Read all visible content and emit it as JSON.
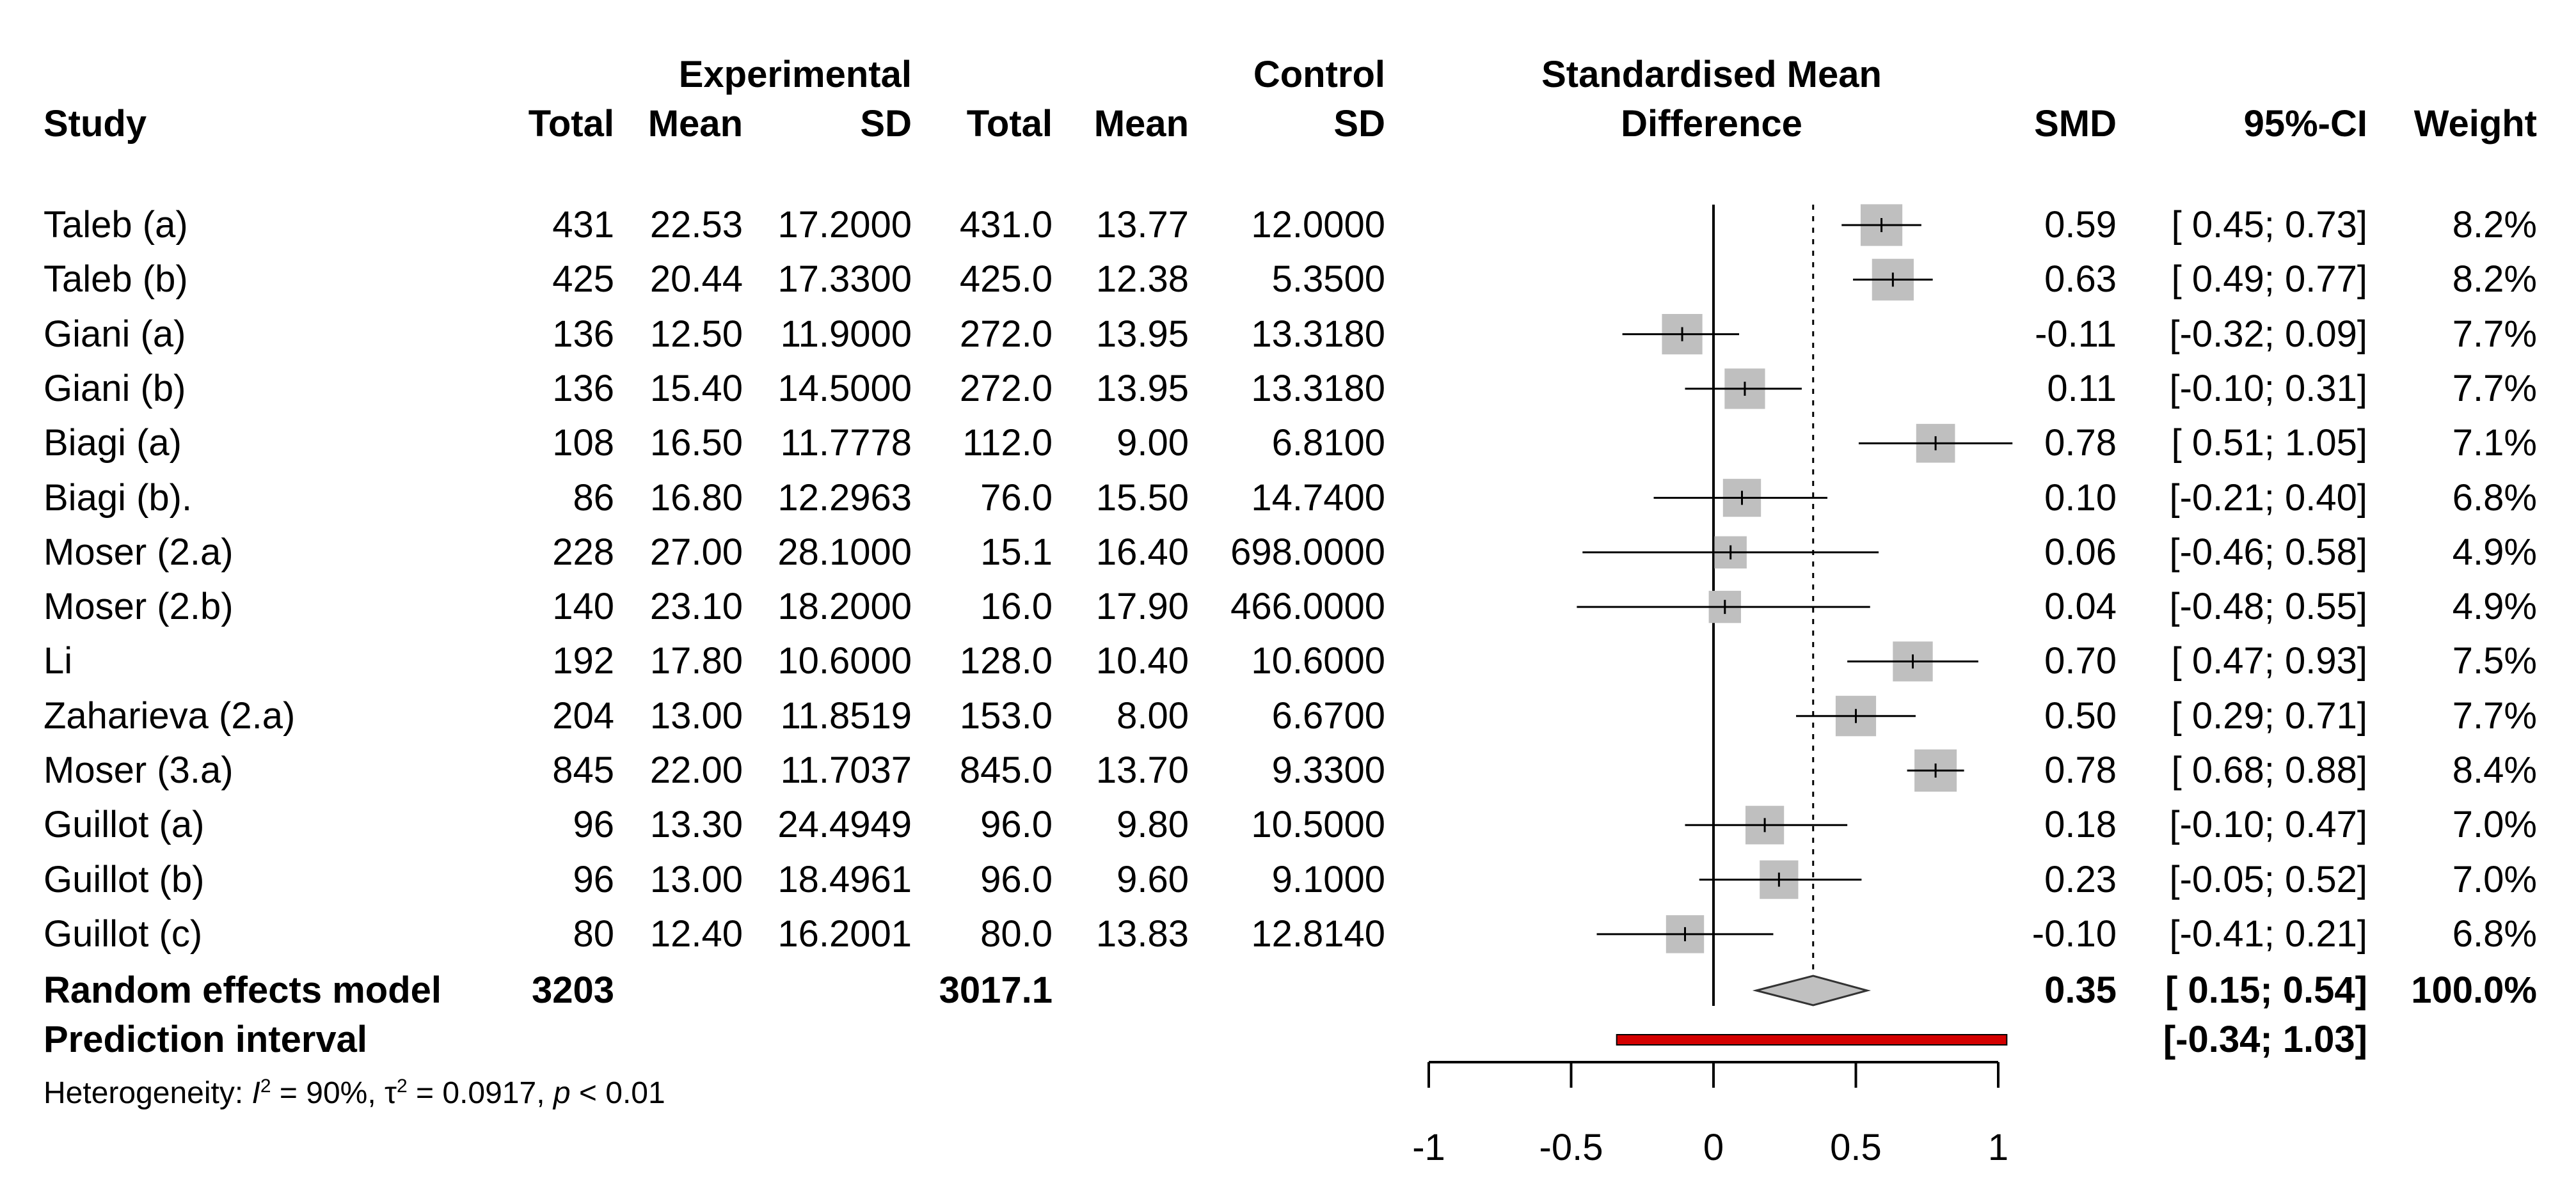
{
  "chart_data": {
    "type": "forest",
    "title": "",
    "xlabel": "Standardised Mean Difference",
    "xlim": [
      -1,
      1
    ],
    "x_ticks": [
      "-1",
      "-0.5",
      "0",
      "0.5",
      "1"
    ],
    "headers": {
      "study": "Study",
      "experimental": "Experimental",
      "control": "Control",
      "total": "Total",
      "mean": "Mean",
      "sd": "SD",
      "smd_title_line1": "Standardised Mean",
      "smd_title_line2": "Difference",
      "smd": "SMD",
      "ci": "95%-CI",
      "weight": "Weight"
    },
    "studies": [
      {
        "study": "Taleb (a)",
        "e_total": "431",
        "e_mean": "22.53",
        "e_sd": "17.2000",
        "c_total": "431.0",
        "c_mean": "13.77",
        "c_sd": "12.0000",
        "smd": 0.59,
        "lower": 0.45,
        "upper": 0.73,
        "weight": 8.2,
        "smd_text": "0.59",
        "ci_text": "[ 0.45; 0.73]",
        "weight_text": "8.2%"
      },
      {
        "study": "Taleb (b)",
        "e_total": "425",
        "e_mean": "20.44",
        "e_sd": "17.3300",
        "c_total": "425.0",
        "c_mean": "12.38",
        "c_sd": "5.3500",
        "smd": 0.63,
        "lower": 0.49,
        "upper": 0.77,
        "weight": 8.2,
        "smd_text": "0.63",
        "ci_text": "[ 0.49; 0.77]",
        "weight_text": "8.2%"
      },
      {
        "study": "Giani (a)",
        "e_total": "136",
        "e_mean": "12.50",
        "e_sd": "11.9000",
        "c_total": "272.0",
        "c_mean": "13.95",
        "c_sd": "13.3180",
        "smd": -0.11,
        "lower": -0.32,
        "upper": 0.09,
        "weight": 7.7,
        "smd_text": "-0.11",
        "ci_text": "[-0.32; 0.09]",
        "weight_text": "7.7%"
      },
      {
        "study": "Giani (b)",
        "e_total": "136",
        "e_mean": "15.40",
        "e_sd": "14.5000",
        "c_total": "272.0",
        "c_mean": "13.95",
        "c_sd": "13.3180",
        "smd": 0.11,
        "lower": -0.1,
        "upper": 0.31,
        "weight": 7.7,
        "smd_text": "0.11",
        "ci_text": "[-0.10; 0.31]",
        "weight_text": "7.7%"
      },
      {
        "study": "Biagi (a)",
        "e_total": "108",
        "e_mean": "16.50",
        "e_sd": "11.7778",
        "c_total": "112.0",
        "c_mean": "9.00",
        "c_sd": "6.8100",
        "smd": 0.78,
        "lower": 0.51,
        "upper": 1.05,
        "weight": 7.1,
        "smd_text": "0.78",
        "ci_text": "[ 0.51; 1.05]",
        "weight_text": "7.1%"
      },
      {
        "study": "Biagi (b).",
        "e_total": "86",
        "e_mean": "16.80",
        "e_sd": "12.2963",
        "c_total": "76.0",
        "c_mean": "15.50",
        "c_sd": "14.7400",
        "smd": 0.1,
        "lower": -0.21,
        "upper": 0.4,
        "weight": 6.8,
        "smd_text": "0.10",
        "ci_text": "[-0.21; 0.40]",
        "weight_text": "6.8%"
      },
      {
        "study": "Moser (2.a)",
        "e_total": "228",
        "e_mean": "27.00",
        "e_sd": "28.1000",
        "c_total": "15.1",
        "c_mean": "16.40",
        "c_sd": "698.0000",
        "smd": 0.06,
        "lower": -0.46,
        "upper": 0.58,
        "weight": 4.9,
        "smd_text": "0.06",
        "ci_text": "[-0.46; 0.58]",
        "weight_text": "4.9%"
      },
      {
        "study": "Moser (2.b)",
        "e_total": "140",
        "e_mean": "23.10",
        "e_sd": "18.2000",
        "c_total": "16.0",
        "c_mean": "17.90",
        "c_sd": "466.0000",
        "smd": 0.04,
        "lower": -0.48,
        "upper": 0.55,
        "weight": 4.9,
        "smd_text": "0.04",
        "ci_text": "[-0.48; 0.55]",
        "weight_text": "4.9%"
      },
      {
        "study": "Li",
        "e_total": "192",
        "e_mean": "17.80",
        "e_sd": "10.6000",
        "c_total": "128.0",
        "c_mean": "10.40",
        "c_sd": "10.6000",
        "smd": 0.7,
        "lower": 0.47,
        "upper": 0.93,
        "weight": 7.5,
        "smd_text": "0.70",
        "ci_text": "[ 0.47; 0.93]",
        "weight_text": "7.5%"
      },
      {
        "study": "Zaharieva (2.a)",
        "e_total": "204",
        "e_mean": "13.00",
        "e_sd": "11.8519",
        "c_total": "153.0",
        "c_mean": "8.00",
        "c_sd": "6.6700",
        "smd": 0.5,
        "lower": 0.29,
        "upper": 0.71,
        "weight": 7.7,
        "smd_text": "0.50",
        "ci_text": "[ 0.29; 0.71]",
        "weight_text": "7.7%"
      },
      {
        "study": "Moser (3.a)",
        "e_total": "845",
        "e_mean": "22.00",
        "e_sd": "11.7037",
        "c_total": "845.0",
        "c_mean": "13.70",
        "c_sd": "9.3300",
        "smd": 0.78,
        "lower": 0.68,
        "upper": 0.88,
        "weight": 8.4,
        "smd_text": "0.78",
        "ci_text": "[ 0.68; 0.88]",
        "weight_text": "8.4%"
      },
      {
        "study": "Guillot (a)",
        "e_total": "96",
        "e_mean": "13.30",
        "e_sd": "24.4949",
        "c_total": "96.0",
        "c_mean": "9.80",
        "c_sd": "10.5000",
        "smd": 0.18,
        "lower": -0.1,
        "upper": 0.47,
        "weight": 7.0,
        "smd_text": "0.18",
        "ci_text": "[-0.10; 0.47]",
        "weight_text": "7.0%"
      },
      {
        "study": "Guillot (b)",
        "e_total": "96",
        "e_mean": "13.00",
        "e_sd": "18.4961",
        "c_total": "96.0",
        "c_mean": "9.60",
        "c_sd": "9.1000",
        "smd": 0.23,
        "lower": -0.05,
        "upper": 0.52,
        "weight": 7.0,
        "smd_text": "0.23",
        "ci_text": "[-0.05; 0.52]",
        "weight_text": "7.0%"
      },
      {
        "study": "Guillot (c)",
        "e_total": "80",
        "e_mean": "12.40",
        "e_sd": "16.2001",
        "c_total": "80.0",
        "c_mean": "13.83",
        "c_sd": "12.8140",
        "smd": -0.1,
        "lower": -0.41,
        "upper": 0.21,
        "weight": 6.8,
        "smd_text": "-0.10",
        "ci_text": "[-0.41; 0.21]",
        "weight_text": "6.8%"
      }
    ],
    "random_effects": {
      "label": "Random effects model",
      "e_total": "3203",
      "c_total": "3017.1",
      "smd": 0.35,
      "lower": 0.15,
      "upper": 0.54,
      "smd_text": "0.35",
      "ci_text": "[ 0.15; 0.54]",
      "weight_text": "100.0%"
    },
    "prediction_interval": {
      "label": "Prediction interval",
      "lower": -0.34,
      "upper": 1.03,
      "ci_text": "[-0.34; 1.03]"
    },
    "heterogeneity": {
      "prefix": "Heterogeneity: ",
      "i2_symbol": "I",
      "i2_value": " = 90%, ",
      "tau2_symbol": "τ",
      "tau2_value": " = 0.0917, ",
      "p_symbol": "p",
      "p_value": " < 0.01"
    },
    "reference_line": 0,
    "pooled_line": 0.35,
    "colors": {
      "box": "#bfbfbf",
      "line": "#000000",
      "diamond_fill": "#c0c0c0",
      "prediction_fill": "#d40000"
    }
  }
}
